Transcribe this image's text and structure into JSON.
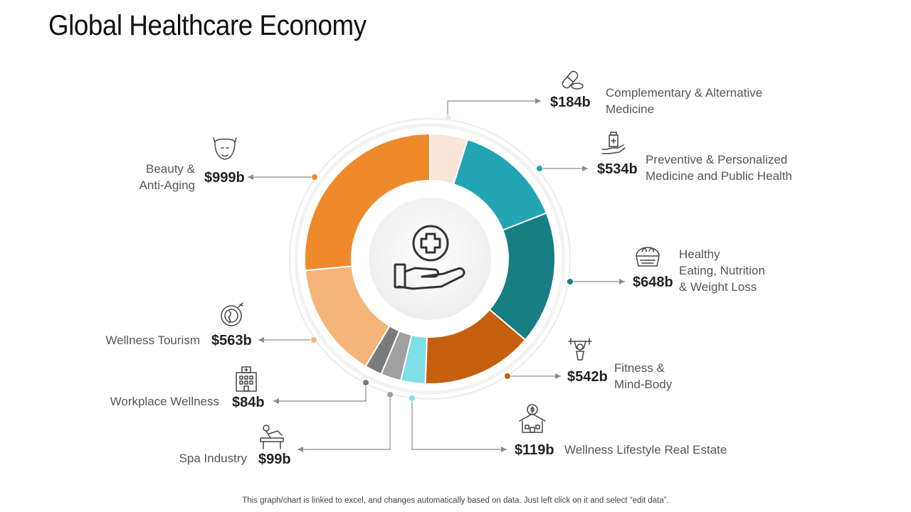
{
  "title": "Global Healthcare Economy",
  "footnote": "This graph/chart is linked to excel, and changes automatically based on data. Just left click on it and select “edit data”.",
  "chart_data": {
    "type": "pie",
    "title": "Global Healthcare Economy",
    "unit": "b",
    "segments": [
      {
        "name": "Complementary & Alternative Medicine",
        "value": 184,
        "label": "$184b",
        "color": "#fbe5d6",
        "icon": "pills-icon"
      },
      {
        "name": "Preventive & Personalized Medicine and Public Health",
        "value": 534,
        "label": "$534b",
        "color": "#22a4b3",
        "icon": "medicine-hand-icon"
      },
      {
        "name": "Healthy Eating, Nutrition & Weight Loss",
        "value": 648,
        "label": "$648b",
        "color": "#177e84",
        "icon": "food-basket-icon"
      },
      {
        "name": "Fitness & Mind-Body",
        "value": 542,
        "label": "$542b",
        "color": "#c5600f",
        "icon": "weightlifting-icon"
      },
      {
        "name": "Wellness Lifestyle Real Estate",
        "value": 119,
        "label": "$119b",
        "color": "#7fdfe8",
        "icon": "house-dollar-icon"
      },
      {
        "name": "Spa Industry",
        "value": 99,
        "label": "$99b",
        "color": "#a0a0a0",
        "icon": "spa-massage-icon"
      },
      {
        "name": "Workplace Wellness",
        "value": 84,
        "label": "$84b",
        "color": "#7b7b7b",
        "icon": "office-building-icon"
      },
      {
        "name": "Wellness Tourism",
        "value": 563,
        "label": "$563b",
        "color": "#f4b47a",
        "icon": "globe-plane-icon"
      },
      {
        "name": "Beauty & Anti-Aging",
        "value": 999,
        "label": "$999b",
        "color": "#ee8a2c",
        "icon": "face-mask-icon"
      }
    ],
    "label_lines": [
      [
        "Complementary & Alternative",
        "Medicine"
      ],
      [
        "Preventive & Personalized",
        "Medicine and Public Health"
      ],
      [
        "Healthy",
        "Eating, Nutrition",
        "& Weight Loss"
      ],
      [
        "Fitness &",
        "Mind-Body"
      ],
      [
        "Wellness Lifestyle Real Estate"
      ],
      [
        "Spa Industry"
      ],
      [
        "Workplace Wellness"
      ],
      [
        "Wellness Tourism"
      ],
      [
        "Beauty &",
        "Anti-Aging"
      ]
    ]
  }
}
